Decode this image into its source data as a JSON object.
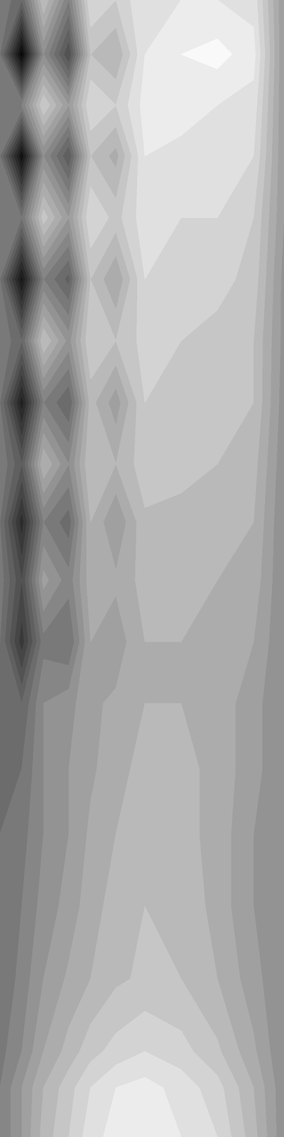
{
  "chart_data": {
    "type": "contour",
    "tick_labels": false,
    "color": "gray",
    "xlim": [
      0,
      392
    ],
    "ylim": [
      1568,
      0
    ],
    "clim": [
      0,
      1
    ],
    "x": [
      0,
      30,
      60,
      95,
      125,
      160,
      200,
      250,
      300,
      350,
      392
    ],
    "y": [
      0,
      75,
      145,
      215,
      300,
      385,
      470,
      555,
      640,
      720,
      800,
      885,
      970,
      1060,
      1150,
      1250,
      1350,
      1450,
      1500,
      1568
    ],
    "cells": [
      [
        0.5,
        0.4,
        0.75,
        0.5,
        0.85,
        0.8,
        0.9,
        0.9,
        0.9,
        0.88,
        0.6
      ],
      [
        0.45,
        0.02,
        0.55,
        0.3,
        0.75,
        0.7,
        0.9,
        0.95,
        0.97,
        0.92,
        0.6
      ],
      [
        0.5,
        0.5,
        0.8,
        0.6,
        0.85,
        0.8,
        0.92,
        0.93,
        0.9,
        0.88,
        0.6
      ],
      [
        0.45,
        0.05,
        0.55,
        0.35,
        0.75,
        0.68,
        0.9,
        0.88,
        0.9,
        0.85,
        0.6
      ],
      [
        0.5,
        0.45,
        0.78,
        0.6,
        0.85,
        0.78,
        0.88,
        0.85,
        0.85,
        0.8,
        0.6
      ],
      [
        0.45,
        0.08,
        0.5,
        0.38,
        0.75,
        0.65,
        0.85,
        0.82,
        0.82,
        0.78,
        0.58
      ],
      [
        0.5,
        0.4,
        0.75,
        0.58,
        0.8,
        0.75,
        0.82,
        0.8,
        0.78,
        0.75,
        0.58
      ],
      [
        0.45,
        0.12,
        0.5,
        0.4,
        0.72,
        0.62,
        0.8,
        0.78,
        0.78,
        0.75,
        0.57
      ],
      [
        0.5,
        0.35,
        0.7,
        0.55,
        0.75,
        0.7,
        0.78,
        0.76,
        0.75,
        0.72,
        0.56
      ],
      [
        0.45,
        0.17,
        0.5,
        0.42,
        0.7,
        0.6,
        0.74,
        0.74,
        0.72,
        0.7,
        0.55
      ],
      [
        0.48,
        0.3,
        0.62,
        0.52,
        0.68,
        0.66,
        0.72,
        0.72,
        0.7,
        0.68,
        0.55
      ],
      [
        0.45,
        0.22,
        0.48,
        0.45,
        0.65,
        0.62,
        0.7,
        0.7,
        0.68,
        0.65,
        0.55
      ],
      [
        0.45,
        0.4,
        0.55,
        0.58,
        0.64,
        0.66,
        0.7,
        0.7,
        0.68,
        0.62,
        0.55
      ],
      [
        0.45,
        0.45,
        0.55,
        0.6,
        0.64,
        0.68,
        0.72,
        0.72,
        0.68,
        0.62,
        0.55
      ],
      [
        0.45,
        0.48,
        0.55,
        0.6,
        0.66,
        0.7,
        0.74,
        0.72,
        0.68,
        0.6,
        0.55
      ],
      [
        0.45,
        0.5,
        0.57,
        0.62,
        0.68,
        0.72,
        0.75,
        0.74,
        0.68,
        0.6,
        0.55
      ],
      [
        0.45,
        0.52,
        0.6,
        0.66,
        0.7,
        0.74,
        0.76,
        0.75,
        0.7,
        0.62,
        0.55
      ],
      [
        0.48,
        0.55,
        0.65,
        0.72,
        0.78,
        0.82,
        0.85,
        0.82,
        0.76,
        0.66,
        0.55
      ],
      [
        0.5,
        0.6,
        0.7,
        0.78,
        0.85,
        0.9,
        0.92,
        0.88,
        0.82,
        0.7,
        0.56
      ],
      [
        0.5,
        0.6,
        0.72,
        0.8,
        0.88,
        0.92,
        0.95,
        0.9,
        0.85,
        0.72,
        0.56
      ]
    ]
  }
}
